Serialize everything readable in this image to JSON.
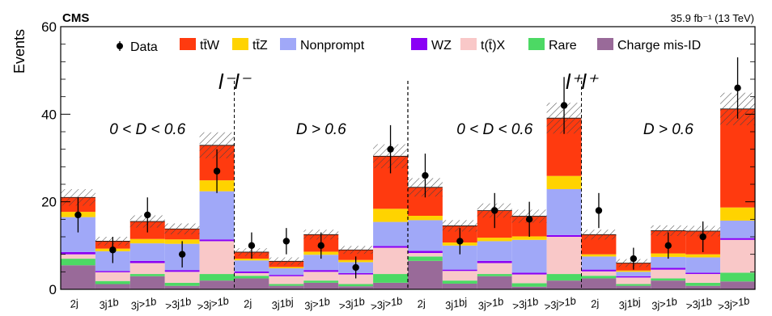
{
  "chart_data": {
    "type": "bar",
    "stacked": true,
    "ylabel": "Events",
    "ylim": [
      0,
      60
    ],
    "yticks": [
      0,
      20,
      40,
      60
    ],
    "experiment_label": "CMS",
    "lumi_label": "35.9 fb⁻¹ (13 TeV)",
    "categories": [
      "2j",
      "3j1b",
      "3j>1b",
      ">3j1b",
      ">3j>1b",
      "2j",
      "3j1bj",
      "3j>1b",
      ">3j1b",
      ">3j>1b",
      "2j",
      "3j1bj",
      "3j>1b",
      ">3j1b",
      ">3j>1b",
      "2j",
      "3j1bj",
      "3j>1b",
      ">3j1b",
      ">3j>1b"
    ],
    "regions": [
      {
        "label": "0 < D < 0.6",
        "bins": [
          0,
          4
        ]
      },
      {
        "label": "D > 0.6",
        "bins": [
          5,
          9
        ]
      },
      {
        "label": "0 < D < 0.6",
        "bins": [
          10,
          14
        ]
      },
      {
        "label": "D > 0.6",
        "bins": [
          15,
          19
        ]
      }
    ],
    "charge_labels": [
      {
        "label": "l⁻l⁻",
        "bins": [
          0,
          9
        ]
      },
      {
        "label": "l⁺l⁺",
        "bins": [
          10,
          19
        ]
      }
    ],
    "series": [
      {
        "name": "Charge mis-ID",
        "color": "#996a99",
        "values": [
          5.5,
          1.2,
          3.0,
          0.8,
          2.0,
          2.5,
          0.8,
          1.5,
          0.7,
          1.5,
          6.5,
          1.3,
          3.0,
          0.6,
          2.0,
          2.5,
          0.8,
          2.0,
          0.8,
          1.8
        ]
      },
      {
        "name": "Rare",
        "color": "#4cd964",
        "values": [
          1.5,
          0.7,
          0.5,
          0.7,
          1.5,
          0.6,
          0.4,
          0.5,
          0.5,
          2.0,
          1.0,
          0.7,
          0.5,
          0.8,
          1.5,
          0.6,
          0.4,
          0.5,
          0.7,
          2.0
        ]
      },
      {
        "name": "t(t̄)X",
        "color": "#f9c8c8",
        "values": [
          1.0,
          2.0,
          2.5,
          2.5,
          7.5,
          0.6,
          1.8,
          2.0,
          2.2,
          6.0,
          0.8,
          2.2,
          2.5,
          2.0,
          8.5,
          1.0,
          1.5,
          2.0,
          2.0,
          7.5
        ]
      },
      {
        "name": "WZ",
        "color": "#8a00f5",
        "values": [
          0.5,
          0.3,
          0.5,
          0.4,
          0.4,
          0.4,
          0.3,
          0.4,
          0.3,
          0.4,
          0.5,
          0.3,
          0.5,
          0.4,
          0.4,
          0.4,
          0.3,
          0.4,
          0.3,
          0.4
        ]
      },
      {
        "name": "Nonprompt",
        "color": "#a0a8f8",
        "values": [
          8.0,
          4.5,
          4.0,
          6.0,
          11.0,
          2.5,
          1.5,
          3.5,
          2.5,
          5.5,
          7.0,
          5.5,
          4.5,
          7.5,
          10.5,
          3.0,
          1.0,
          2.5,
          3.5,
          4.0
        ]
      },
      {
        "name": "tt̄Z",
        "color": "#ffd300",
        "values": [
          1.2,
          0.6,
          1.0,
          1.0,
          2.5,
          0.4,
          0.3,
          0.7,
          0.5,
          3.0,
          1.0,
          0.7,
          0.8,
          0.8,
          3.0,
          0.5,
          0.3,
          0.8,
          0.7,
          3.0
        ]
      },
      {
        "name": "tt̄W",
        "color": "#ff3a0f",
        "values": [
          3.3,
          1.7,
          4.0,
          2.4,
          8.0,
          1.5,
          1.3,
          3.9,
          2.3,
          12.0,
          6.5,
          3.8,
          6.2,
          4.6,
          13.2,
          4.5,
          1.7,
          5.2,
          5.3,
          22.5
        ]
      }
    ],
    "data": {
      "name": "Data",
      "values": [
        17,
        9,
        17,
        8,
        27,
        10,
        11,
        10,
        5,
        32,
        26,
        11,
        18,
        16,
        42,
        18,
        7,
        10,
        12,
        46
      ],
      "errors": [
        4,
        3,
        4,
        3,
        5,
        3,
        3,
        3,
        2.5,
        5.5,
        5,
        3,
        4,
        4,
        6.5,
        4,
        2.5,
        3,
        3.5,
        7
      ]
    },
    "uncertainty_hatch": true,
    "legend_placement": "top"
  }
}
